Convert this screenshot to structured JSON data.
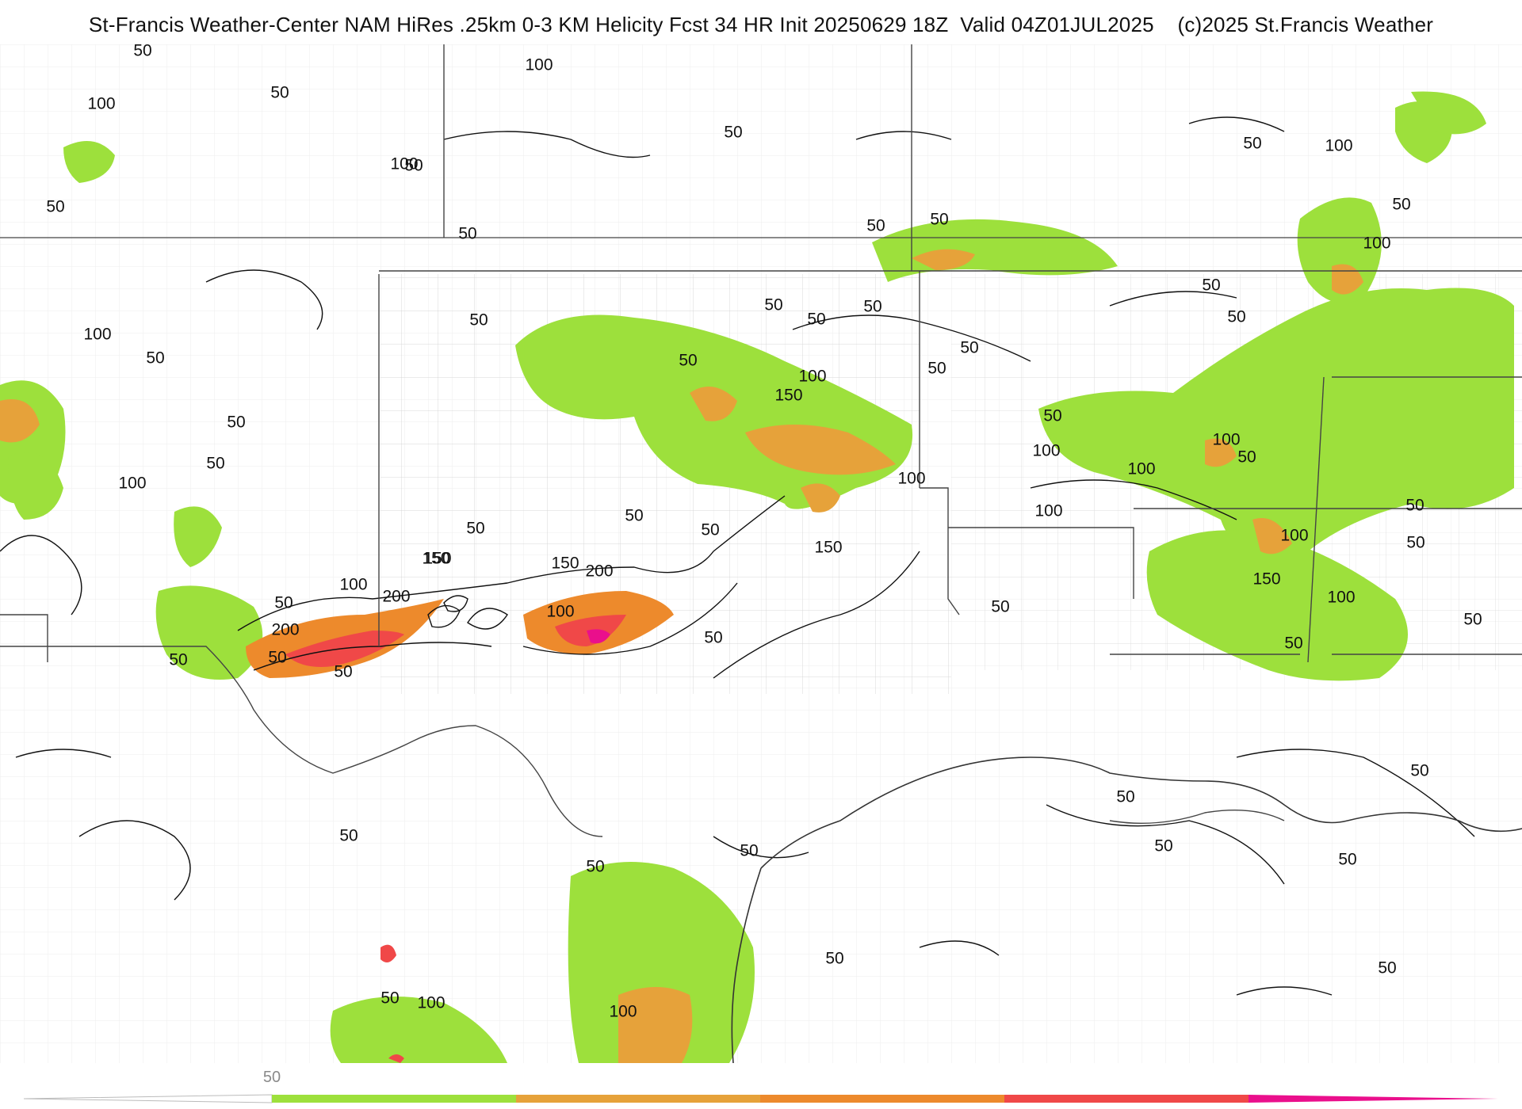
{
  "title": "St-Francis Weather-Center NAM HiRes .25km 0-3 KM Helicity Fcst 34 HR Init 20250629 18Z  Valid 04Z01JUL2025    (c)2025 St.Francis Weather",
  "colors": {
    "green": "#9de03c",
    "orange_light": "#e6a23a",
    "orange": "#ed8a2c",
    "red": "#f04848",
    "magenta": "#ea0f8c",
    "contour": "#111111",
    "border": "#444444",
    "county": "#cccccc"
  },
  "legend": {
    "labels": [
      "50"
    ],
    "bins": [
      "none",
      "green",
      "orange_light",
      "orange",
      "red",
      "magenta"
    ]
  },
  "contour_labels": [
    {
      "t": "50"
    },
    {
      "t": "50"
    },
    {
      "t": "100"
    },
    {
      "t": "50"
    },
    {
      "t": "100"
    },
    {
      "t": "50"
    },
    {
      "t": "50"
    },
    {
      "t": "100"
    },
    {
      "t": "50"
    },
    {
      "t": "50"
    },
    {
      "t": "50"
    },
    {
      "t": "100"
    },
    {
      "t": "50"
    },
    {
      "t": "100"
    },
    {
      "t": "50"
    },
    {
      "t": "150"
    },
    {
      "t": "50"
    },
    {
      "t": "200"
    },
    {
      "t": "50"
    },
    {
      "t": "50"
    },
    {
      "t": "50"
    },
    {
      "t": "100"
    },
    {
      "t": "200"
    },
    {
      "t": "50"
    },
    {
      "t": "150"
    },
    {
      "t": "150"
    },
    {
      "t": "200"
    },
    {
      "t": "100"
    },
    {
      "t": "50"
    },
    {
      "t": "50"
    },
    {
      "t": "50"
    },
    {
      "t": "150"
    },
    {
      "t": "50"
    },
    {
      "t": "50"
    },
    {
      "t": "50"
    },
    {
      "t": "50"
    },
    {
      "t": "100"
    },
    {
      "t": "150"
    },
    {
      "t": "50"
    },
    {
      "t": "50"
    },
    {
      "t": "50"
    },
    {
      "t": "50"
    },
    {
      "t": "100"
    },
    {
      "t": "100"
    },
    {
      "t": "100"
    },
    {
      "t": "100"
    },
    {
      "t": "50"
    },
    {
      "t": "50"
    },
    {
      "t": "50"
    },
    {
      "t": "50"
    },
    {
      "t": "100"
    },
    {
      "t": "50"
    },
    {
      "t": "100"
    },
    {
      "t": "100"
    },
    {
      "t": "50"
    },
    {
      "t": "100"
    },
    {
      "t": "50"
    },
    {
      "t": "50"
    },
    {
      "t": "150"
    },
    {
      "t": "100"
    },
    {
      "t": "50"
    },
    {
      "t": "50"
    },
    {
      "t": "50"
    },
    {
      "t": "50"
    },
    {
      "t": "50"
    },
    {
      "t": "50"
    },
    {
      "t": "50"
    },
    {
      "t": "50"
    },
    {
      "t": "50"
    },
    {
      "t": "50"
    },
    {
      "t": "50"
    },
    {
      "t": "100"
    },
    {
      "t": "50"
    },
    {
      "t": "100"
    },
    {
      "t": "50"
    }
  ]
}
